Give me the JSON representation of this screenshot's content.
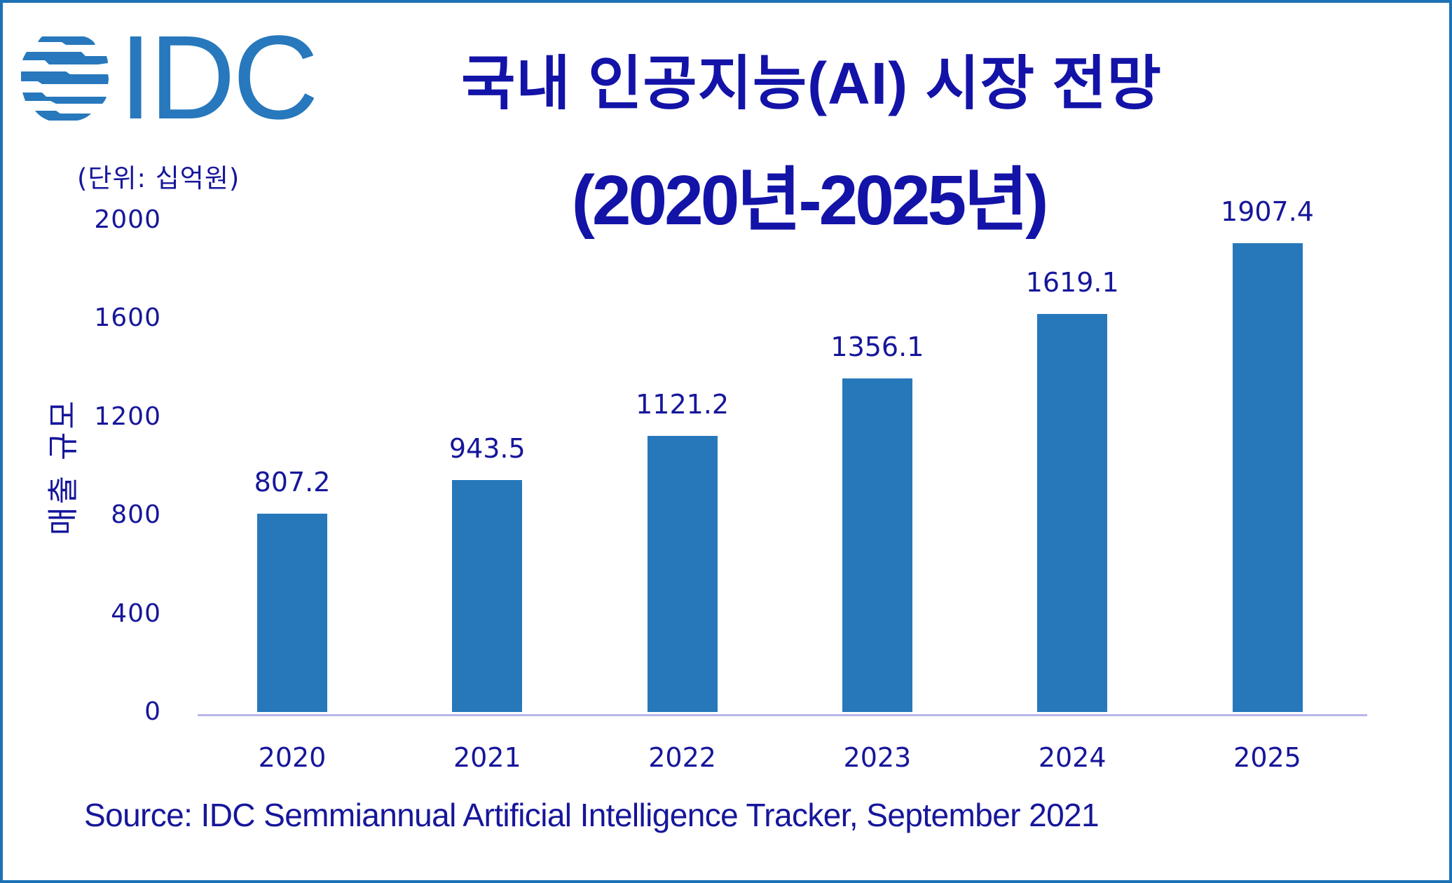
{
  "logo": {
    "text": "IDC",
    "color": "#2778BC"
  },
  "header": {
    "title_line1": "국내 인공지능(AI) 시장 전망",
    "title_line2": "(2020년-2025년)",
    "title_color": "#1313A8"
  },
  "unit_label": "(단위: 십억원)",
  "source": "Source: IDC Semmiannual Artificial Intelligence Tracker, September 2021",
  "colors": {
    "bar": "#2778BA",
    "text": "#16169A",
    "axis": "#B6B6E6",
    "border": "#1B72B6"
  },
  "chart_data": {
    "type": "bar",
    "title": "국내 인공지능(AI) 시장 전망 (2020년-2025년)",
    "subtitle": "(단위: 십억원)",
    "xlabel": "",
    "ylabel": "매출 규모",
    "categories": [
      "2020",
      "2021",
      "2022",
      "2023",
      "2024",
      "2025"
    ],
    "values": [
      807.2,
      943.5,
      1121.2,
      1356.1,
      1619.1,
      1907.4
    ],
    "value_labels": [
      "807.2",
      "943.5",
      "1121.2",
      "1356.1",
      "1619.1",
      "1907.4"
    ],
    "yticks": [
      "0",
      "400",
      "800",
      "1200",
      "1600",
      "2000"
    ],
    "ylim": [
      0,
      2000
    ],
    "grid": false,
    "legend": null,
    "annotations": [
      "Source: IDC Semmiannual Artificial Intelligence Tracker, September 2021"
    ]
  }
}
